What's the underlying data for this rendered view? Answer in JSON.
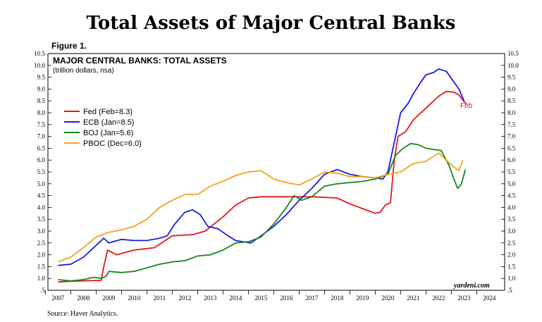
{
  "header": {
    "title": "Total Assets of Major Central Banks",
    "figure": "Figure 1.",
    "source": "Source: Haver Analytics."
  },
  "chart_data": {
    "type": "line",
    "title": "MAJOR CENTRAL BANKS: TOTAL ASSETS",
    "subtitle": "(trillion dollars, nsa)",
    "watermark": "yardeni.com",
    "annotation": "Feb",
    "ylim": [
      0.5,
      10.5
    ],
    "yticks": [
      ".5",
      "1.0",
      "1.5",
      "2.0",
      "2.5",
      "3.0",
      "3.5",
      "4.0",
      "4.5",
      "5.0",
      "5.5",
      "6.0",
      "6.5",
      "7.0",
      "7.5",
      "8.0",
      "8.5",
      "9.0",
      "9.5",
      "10.0",
      "10.5"
    ],
    "xlim": [
      2006.6,
      2024.6
    ],
    "xticks": [
      "2007",
      "2008",
      "2009",
      "2010",
      "2011",
      "2012",
      "2013",
      "2014",
      "2015",
      "2016",
      "2017",
      "2018",
      "2019",
      "2020",
      "2021",
      "2022",
      "2023",
      "2024"
    ],
    "legend_position": "left",
    "series": [
      {
        "name": "Fed (Feb=8.3)",
        "color": "#e8141c",
        "x": [
          2007,
          2007.5,
          2008,
          2008.7,
          2008.8,
          2008.95,
          2009.3,
          2010,
          2010.8,
          2011.5,
          2012.3,
          2012.8,
          2013.5,
          2014,
          2014.5,
          2015,
          2016,
          2017,
          2018,
          2018.5,
          2019,
          2019.5,
          2019.7,
          2019.9,
          2020.1,
          2020.25,
          2020.4,
          2020.7,
          2021,
          2021.5,
          2022,
          2022.3,
          2022.6,
          2022.8,
          2022.9,
          2023.1
        ],
        "values": [
          0.85,
          0.88,
          0.9,
          0.92,
          1.5,
          2.2,
          2.0,
          2.2,
          2.3,
          2.8,
          2.85,
          3.0,
          3.6,
          4.1,
          4.4,
          4.45,
          4.45,
          4.45,
          4.4,
          4.15,
          3.95,
          3.75,
          3.8,
          4.1,
          4.2,
          6.0,
          7.0,
          7.2,
          7.7,
          8.2,
          8.7,
          8.9,
          8.87,
          8.75,
          8.6,
          8.35
        ]
      },
      {
        "name": "ECB (Jan=8.5)",
        "color": "#1a1ae6",
        "x": [
          2007,
          2007.5,
          2008,
          2008.5,
          2008.8,
          2009,
          2009.5,
          2010,
          2010.5,
          2011,
          2011.3,
          2011.6,
          2012,
          2012.3,
          2012.6,
          2012.9,
          2013.3,
          2013.7,
          2014,
          2014.3,
          2014.6,
          2015,
          2015.5,
          2016,
          2016.5,
          2017,
          2017.5,
          2018,
          2018.5,
          2019,
          2019.5,
          2019.8,
          2020,
          2020.2,
          2020.5,
          2020.8,
          2021,
          2021.3,
          2021.5,
          2021.8,
          2022,
          2022.3,
          2022.6,
          2022.8,
          2023
        ],
        "values": [
          1.55,
          1.6,
          1.9,
          2.4,
          2.7,
          2.5,
          2.65,
          2.6,
          2.6,
          2.7,
          2.8,
          3.3,
          3.8,
          3.9,
          3.7,
          3.2,
          3.1,
          2.8,
          2.6,
          2.55,
          2.5,
          2.8,
          3.2,
          3.7,
          4.3,
          4.8,
          5.4,
          5.6,
          5.4,
          5.3,
          5.25,
          5.2,
          5.5,
          6.5,
          8.0,
          8.4,
          8.8,
          9.3,
          9.6,
          9.7,
          9.85,
          9.75,
          9.3,
          9.0,
          8.5
        ]
      },
      {
        "name": "BOJ (Jan=5.6)",
        "color": "#18861c",
        "x": [
          2007,
          2007.5,
          2008,
          2008.4,
          2008.7,
          2008.9,
          2009,
          2009.5,
          2010,
          2010.5,
          2011,
          2011.5,
          2012,
          2012.5,
          2013,
          2013.5,
          2014,
          2014.5,
          2015,
          2015.5,
          2016,
          2016.3,
          2016.6,
          2017,
          2017.5,
          2018,
          2018.5,
          2019,
          2019.5,
          2020,
          2020.3,
          2020.6,
          2020.9,
          2021.2,
          2021.5,
          2021.8,
          2022.1,
          2022.4,
          2022.6,
          2022.75,
          2022.9,
          2023.05
        ],
        "values": [
          0.95,
          0.9,
          0.95,
          1.05,
          1.0,
          1.1,
          1.3,
          1.25,
          1.3,
          1.45,
          1.6,
          1.7,
          1.75,
          1.95,
          2.0,
          2.2,
          2.5,
          2.55,
          2.75,
          3.3,
          4.0,
          4.5,
          4.3,
          4.45,
          4.9,
          5.0,
          5.05,
          5.1,
          5.2,
          5.4,
          6.2,
          6.5,
          6.7,
          6.65,
          6.5,
          6.45,
          6.4,
          5.8,
          5.2,
          4.8,
          5.0,
          5.6
        ]
      },
      {
        "name": "PBOC (Dec=6.0)",
        "color": "#f5a21d",
        "x": [
          2007,
          2007.5,
          2008,
          2008.5,
          2009,
          2009.5,
          2010,
          2010.5,
          2011,
          2011.5,
          2012,
          2012.5,
          2013,
          2013.5,
          2014,
          2014.5,
          2015,
          2015.5,
          2016,
          2016.5,
          2017,
          2017.5,
          2018,
          2018.5,
          2019,
          2019.5,
          2020,
          2020.5,
          2021,
          2021.5,
          2022,
          2022.3,
          2022.6,
          2022.8,
          2022.95
        ],
        "values": [
          1.7,
          1.9,
          2.3,
          2.75,
          2.95,
          3.05,
          3.2,
          3.5,
          4.0,
          4.3,
          4.55,
          4.55,
          4.9,
          5.1,
          5.35,
          5.5,
          5.55,
          5.2,
          5.05,
          4.95,
          5.2,
          5.5,
          5.45,
          5.3,
          5.3,
          5.25,
          5.4,
          5.5,
          5.85,
          5.95,
          6.3,
          6.0,
          5.7,
          5.55,
          6.0
        ]
      }
    ]
  }
}
